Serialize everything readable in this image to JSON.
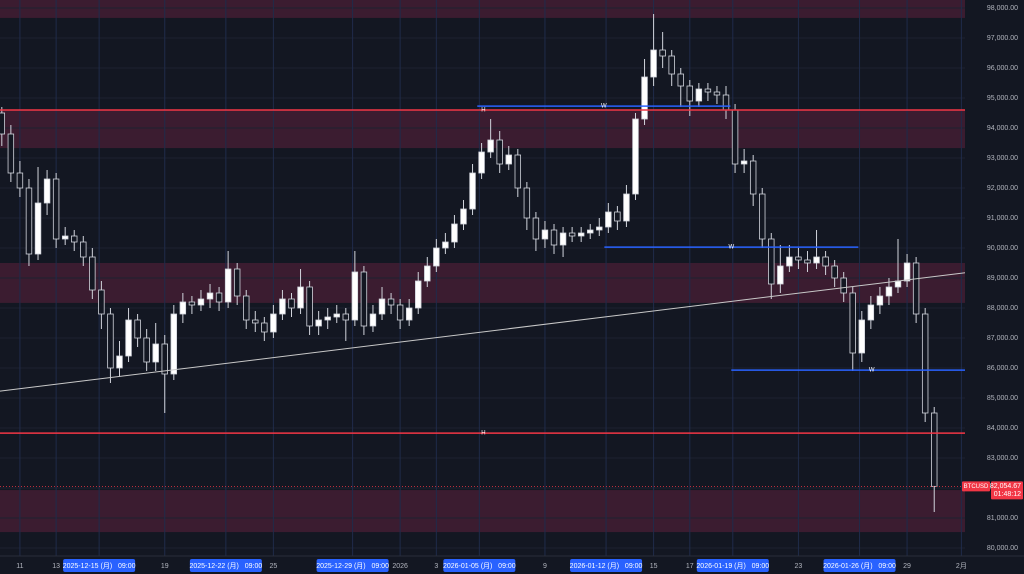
{
  "chart_data": {
    "type": "candlestick",
    "symbol": "BTCUSD",
    "up_color": "#ffffff",
    "down_color": "#131722",
    "wick_color": "#d1d4dc",
    "background": "#131722",
    "x": [
      9,
      9.5,
      10,
      10.5,
      11,
      11.5,
      12,
      12.5,
      13,
      13.5,
      14,
      14.5,
      15,
      15.5,
      16,
      16.5,
      17,
      17.5,
      18,
      18.5,
      19,
      19.5,
      20,
      20.5,
      21,
      21.5,
      22,
      22.5,
      23,
      23.5,
      24,
      24.5,
      25,
      25.5,
      26,
      26.5,
      27,
      27.5,
      28,
      28.5,
      29,
      29.5,
      30,
      30.5,
      31,
      31.5,
      32,
      32.5,
      33,
      33.5,
      34,
      34.5,
      35,
      35.5,
      36,
      36.5,
      37,
      37.5,
      38,
      38.5,
      39,
      39.5,
      40,
      40.5,
      41,
      41.5,
      42,
      42.5,
      43,
      43.5,
      44,
      44.5,
      45,
      45.5,
      46,
      46.5,
      47,
      47.5,
      48,
      48.5,
      49,
      49.5,
      50,
      50.5,
      51,
      51.5,
      52,
      52.5,
      53,
      53.5,
      54,
      54.5,
      55,
      55.5,
      56,
      56.5,
      57,
      57.5,
      58,
      58.5,
      59,
      59.5,
      60,
      60.5
    ],
    "open": [
      94500,
      93800,
      92500,
      92000,
      89800,
      91500,
      92300,
      90300,
      90400,
      90200,
      89700,
      88600,
      87800,
      86000,
      86400,
      87600,
      87000,
      86200,
      86800,
      85800,
      87800,
      88200,
      88100,
      88300,
      88500,
      88200,
      89300,
      88400,
      87600,
      87500,
      87200,
      87800,
      88300,
      88000,
      88700,
      87400,
      87600,
      87700,
      87800,
      87600,
      89200,
      87400,
      87800,
      88300,
      88100,
      87600,
      88000,
      88900,
      89400,
      90000,
      90200,
      90800,
      91300,
      92500,
      93200,
      93600,
      92800,
      93100,
      92000,
      91000,
      90300,
      90600,
      90100,
      90500,
      90400,
      90500,
      90600,
      90700,
      91200,
      90900,
      91800,
      94300,
      95700,
      96600,
      96400,
      95800,
      95400,
      94900,
      95300,
      95200,
      95100,
      94600,
      92800,
      92900,
      91800,
      90300,
      88800,
      89400,
      89700,
      89600,
      89500,
      89700,
      89400,
      89000,
      88500,
      86500,
      87600,
      88100,
      88400,
      88700,
      88900,
      89500,
      87800,
      84500
    ],
    "high": [
      94700,
      94100,
      92900,
      92300,
      92700,
      92600,
      92500,
      90700,
      90600,
      90400,
      90000,
      88900,
      88000,
      86900,
      88000,
      87800,
      87300,
      87500,
      87100,
      88100,
      88500,
      88400,
      88600,
      88800,
      88700,
      89900,
      89500,
      88600,
      87900,
      87700,
      88100,
      88600,
      88500,
      89300,
      88900,
      87900,
      88000,
      88100,
      88000,
      89900,
      89400,
      88100,
      88700,
      88500,
      88300,
      88300,
      89200,
      89700,
      90300,
      90500,
      91100,
      91600,
      92800,
      93500,
      94300,
      93900,
      93400,
      93300,
      92200,
      91200,
      90900,
      90800,
      90700,
      90700,
      90700,
      90800,
      91000,
      91500,
      91400,
      92100,
      94500,
      96300,
      97800,
      97200,
      96600,
      96000,
      95600,
      95500,
      95500,
      95400,
      95400,
      94800,
      93300,
      93100,
      92000,
      90500,
      90100,
      90100,
      90000,
      89900,
      90600,
      89900,
      89600,
      89200,
      88700,
      87900,
      88400,
      88700,
      89000,
      90300,
      89800,
      89700,
      88000,
      84700
    ],
    "low": [
      93400,
      92200,
      91700,
      89400,
      89600,
      91100,
      90000,
      90100,
      89900,
      89400,
      88300,
      87300,
      85500,
      85700,
      86200,
      86700,
      85900,
      85900,
      84500,
      85600,
      87500,
      87800,
      87900,
      88000,
      87900,
      88000,
      88100,
      87300,
      87200,
      86900,
      87000,
      87600,
      87700,
      87800,
      87100,
      87100,
      87300,
      87500,
      86900,
      87400,
      87100,
      87200,
      87600,
      87800,
      87300,
      87400,
      87800,
      88700,
      89200,
      89800,
      90000,
      90600,
      91100,
      92300,
      93000,
      92500,
      92600,
      91700,
      90600,
      89900,
      90000,
      89800,
      89700,
      90200,
      90200,
      90300,
      90400,
      90500,
      90600,
      90700,
      91600,
      94100,
      95400,
      96000,
      95400,
      94700,
      94400,
      94700,
      94900,
      94800,
      94300,
      92500,
      92500,
      91400,
      90000,
      88300,
      88500,
      89200,
      89300,
      89200,
      89300,
      89100,
      88700,
      88200,
      85900,
      86200,
      87300,
      87800,
      88100,
      88500,
      88700,
      87500,
      84200,
      81200
    ],
    "close": [
      93800,
      92500,
      92000,
      89800,
      91500,
      92300,
      90300,
      90400,
      90200,
      89700,
      88600,
      87800,
      86000,
      86400,
      87600,
      87000,
      86200,
      86800,
      85800,
      87800,
      88200,
      88100,
      88300,
      88500,
      88200,
      89300,
      88400,
      87600,
      87500,
      87200,
      87800,
      88300,
      88000,
      88700,
      87400,
      87600,
      87700,
      87800,
      87600,
      89200,
      87400,
      87800,
      88300,
      88100,
      87600,
      88000,
      88900,
      89400,
      90000,
      90200,
      90800,
      91300,
      92500,
      93200,
      93600,
      92800,
      93100,
      92000,
      91000,
      90300,
      90600,
      90100,
      90500,
      90400,
      90500,
      90600,
      90700,
      91200,
      90900,
      91800,
      94300,
      95700,
      96600,
      96400,
      95800,
      95400,
      94900,
      95300,
      95200,
      95100,
      94600,
      92800,
      92900,
      91800,
      90300,
      88800,
      89400,
      89700,
      89600,
      89500,
      89700,
      89400,
      89000,
      88500,
      86500,
      87600,
      88100,
      88400,
      88700,
      88900,
      89500,
      87800,
      84500,
      82054.67
    ],
    "xlim": [
      8.9,
      62.2
    ],
    "ylim": [
      79733,
      98267
    ],
    "xticks": [
      {
        "value": 10,
        "label": "11"
      },
      {
        "value": 12,
        "label": "13"
      },
      {
        "value": 14.375,
        "label": "2025-12-15 (月)   09:00"
      },
      {
        "value": 18,
        "label": "19"
      },
      {
        "value": 21.375,
        "label": "2025-12-22 (月)   09:00"
      },
      {
        "value": 24,
        "label": "25"
      },
      {
        "value": 28.375,
        "label": "2025-12-29 (月)   09:00"
      },
      {
        "value": 31,
        "label": "2026"
      },
      {
        "value": 33,
        "label": "3"
      },
      {
        "value": 35.375,
        "label": "2026-01-05 (月)   09:00"
      },
      {
        "value": 39,
        "label": "9"
      },
      {
        "value": 42.375,
        "label": "2026-01-12 (月)   09:00"
      },
      {
        "value": 45,
        "label": "15"
      },
      {
        "value": 47,
        "label": "17"
      },
      {
        "value": 49.375,
        "label": "2026-01-19 (月)   09:00"
      },
      {
        "value": 53,
        "label": "23"
      },
      {
        "value": 56.375,
        "label": "2026-01-26 (月)   09:00"
      },
      {
        "value": 59,
        "label": "29"
      },
      {
        "value": 62,
        "label": "2月"
      }
    ],
    "yticks": [
      {
        "value": 80000,
        "label": "80,000.00"
      },
      {
        "value": 81000,
        "label": "81,000.00"
      },
      {
        "value": 82000,
        "label": "82,000.00"
      },
      {
        "value": 83000,
        "label": "83,000.00"
      },
      {
        "value": 84000,
        "label": "84,000.00"
      },
      {
        "value": 85000,
        "label": "85,000.00"
      },
      {
        "value": 86000,
        "label": "86,000.00"
      },
      {
        "value": 87000,
        "label": "87,000.00"
      },
      {
        "value": 88000,
        "label": "88,000.00"
      },
      {
        "value": 89000,
        "label": "89,000.00"
      },
      {
        "value": 90000,
        "label": "90,000.00"
      },
      {
        "value": 91000,
        "label": "91,000.00"
      },
      {
        "value": 92000,
        "label": "92,000.00"
      },
      {
        "value": 93000,
        "label": "93,000.00"
      },
      {
        "value": 94000,
        "label": "94,000.00"
      },
      {
        "value": 95000,
        "label": "95,000.00"
      },
      {
        "value": 96000,
        "label": "96,000.00"
      },
      {
        "value": 97000,
        "label": "97,000.00"
      },
      {
        "value": 98000,
        "label": "98,000.00"
      }
    ],
    "zones": [
      {
        "low": 97670,
        "high": 98270,
        "from": 8.9,
        "to": 62.3,
        "color": "#4a1f36"
      },
      {
        "low": 93330,
        "high": 94600,
        "from": 8.9,
        "to": 62.3,
        "color": "#4a1f36"
      },
      {
        "low": 88170,
        "high": 89500,
        "from": 8.9,
        "to": 62.3,
        "color": "#4a1f36"
      },
      {
        "low": 80530,
        "high": 81930,
        "from": 8.9,
        "to": 62.3,
        "color": "#4a1f36"
      }
    ],
    "levels": [
      {
        "label": "H",
        "value": 94600,
        "from": 8.9,
        "to": 62.3,
        "color": "#f23645"
      },
      {
        "label": "H",
        "value": 83830,
        "from": 8.9,
        "to": 62.3,
        "color": "#f23645"
      },
      {
        "label": "W",
        "value": 94730,
        "from": 35.26,
        "to": 49.24,
        "color": "#2962ff"
      },
      {
        "label": "W",
        "value": 90030,
        "from": 42.28,
        "to": 56.31,
        "color": "#2962ff"
      },
      {
        "label": "W",
        "value": 85930,
        "from": 49.29,
        "to": 64.8,
        "color": "#2962ff"
      }
    ],
    "trendline": {
      "from": [
        8.9,
        85230
      ],
      "to": [
        63.5,
        89270
      ],
      "color": "#c8c8c8"
    },
    "price_label": {
      "value": 82054.67,
      "label": "82,054.67",
      "countdown": "01:48:12",
      "color": "#f23645"
    }
  }
}
